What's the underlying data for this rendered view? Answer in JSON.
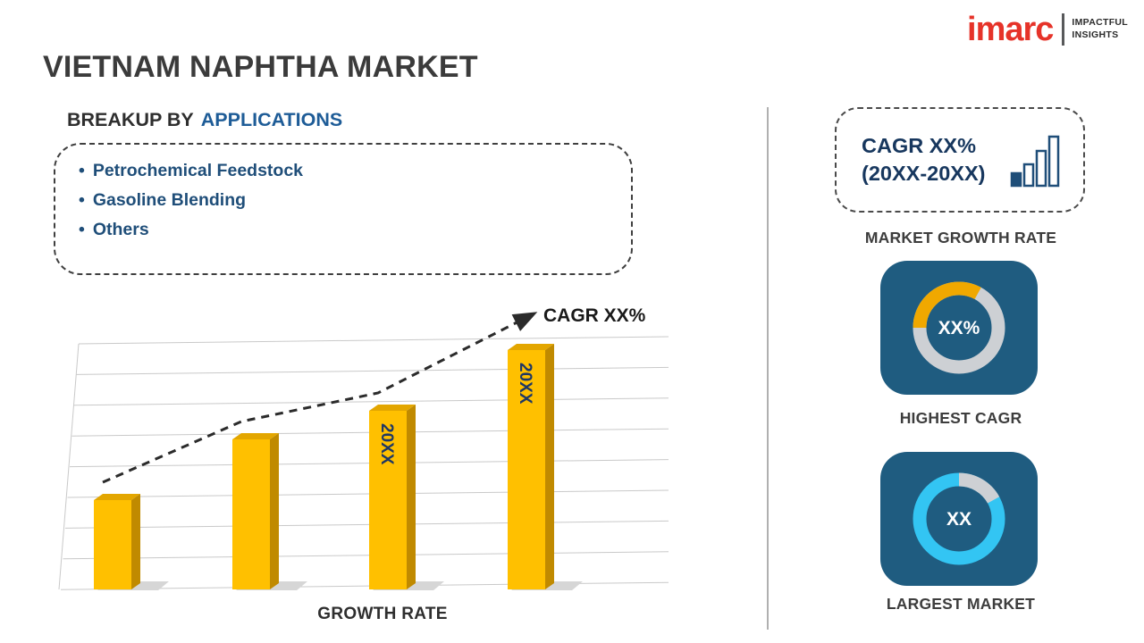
{
  "title": "VIETNAM NAPHTHA MARKET",
  "logo": {
    "brand": "imarc",
    "tagline_line1": "IMPACTFUL",
    "tagline_line2": "INSIGHTS"
  },
  "breakup": {
    "heading_prefix": "BREAKUP BY",
    "heading_highlight": "APPLICATIONS",
    "items": [
      "Petrochemical Feedstock",
      "Gasoline Blending",
      "Others"
    ]
  },
  "chart_data": {
    "type": "bar",
    "title": "",
    "xlabel": "GROWTH RATE",
    "ylabel": "",
    "categories": [
      "",
      "",
      "20XX",
      "20XX"
    ],
    "values": [
      25,
      42,
      50,
      67
    ],
    "trend_label": "CAGR XX%",
    "bar_color": "#FFC000",
    "bar_top_color": "#E3A600",
    "bar_side_color": "#C08A00",
    "grid": true,
    "legend": "none"
  },
  "sidebar": {
    "growth_card": {
      "line1": "CAGR XX%",
      "line2": "(20XX-20XX)"
    },
    "captions": {
      "market_growth_rate": "MARKET GROWTH RATE",
      "highest_cagr": "HIGHEST CAGR",
      "largest_market": "LARGEST MARKET"
    },
    "highest_cagr_value": "XX%",
    "largest_market_value": "XX",
    "colors": {
      "tile_bg": "#1F5C80",
      "cagr_accent": "#F0A800",
      "market_accent": "#33C5F3",
      "ring_gray": "#CDD0D4",
      "brand_red": "#E63329",
      "navy": "#17375E"
    }
  }
}
